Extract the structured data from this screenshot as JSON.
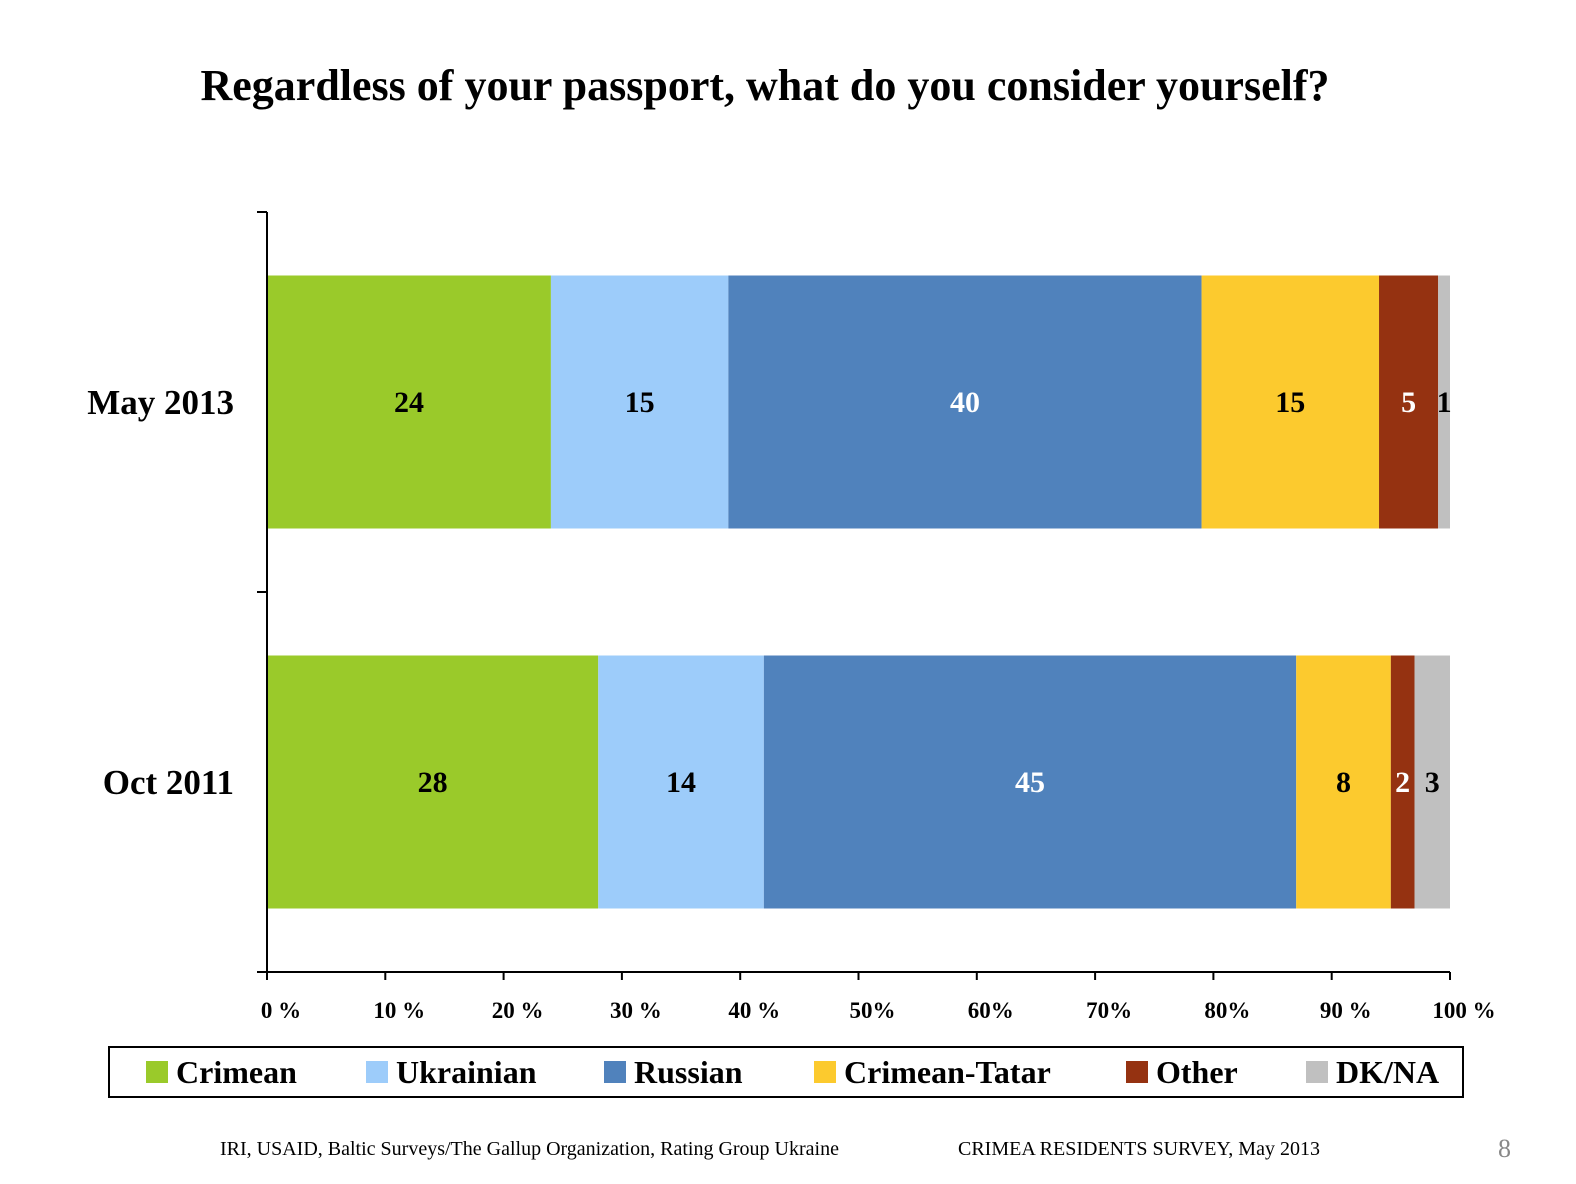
{
  "colors": {
    "Crimean": "#9ACA2A",
    "Ukrainian": "#9DCCFA",
    "Russian": "#5082BC",
    "Crimean-Tatar": "#FCCA2E",
    "Other": "#953211",
    "DK/NA": "#C0C0C0"
  },
  "chart_data": {
    "type": "bar",
    "orientation": "horizontal",
    "stacked": true,
    "title": "Regardless of your passport, what do you consider yourself?",
    "categories": [
      "May 2013",
      "Oct 2011"
    ],
    "xlim": [
      0,
      100
    ],
    "x_ticks": [
      "0 %",
      "10 %",
      "20 %",
      "30 %",
      "40 %",
      "50%",
      "60%",
      "70%",
      "80%",
      "90 %",
      "100 %"
    ],
    "series": [
      {
        "name": "Crimean",
        "values": [
          24,
          28
        ],
        "labels": [
          "24",
          "28"
        ],
        "label_color": "#000000"
      },
      {
        "name": "Ukrainian",
        "values": [
          15,
          14
        ],
        "labels": [
          "15",
          "14"
        ],
        "label_color": "#000000"
      },
      {
        "name": "Russian",
        "values": [
          40,
          45
        ],
        "labels": [
          "40",
          "45"
        ],
        "label_color": "#ffffff"
      },
      {
        "name": "Crimean-Tatar",
        "values": [
          15,
          8
        ],
        "labels": [
          "15",
          "8"
        ],
        "label_color": "#000000"
      },
      {
        "name": "Other",
        "values": [
          5,
          2
        ],
        "labels": [
          "5",
          "2"
        ],
        "label_color": "#ffffff"
      },
      {
        "name": "DK/NA",
        "values": [
          1,
          3
        ],
        "labels": [
          "1",
          "3"
        ],
        "label_color": "#000000"
      }
    ],
    "legend_position": "bottom",
    "grid": false
  },
  "legend": {
    "items": [
      "Crimean",
      "Ukrainian",
      "Russian",
      "Crimean-Tatar",
      "Other",
      "DK/NA"
    ]
  },
  "footer": {
    "source": "IRI, USAID,  Baltic Surveys/The Gallup Organization, Rating Group Ukraine",
    "survey": "CRIMEA RESIDENTS SURVEY, May 2013",
    "page_number": "8"
  }
}
